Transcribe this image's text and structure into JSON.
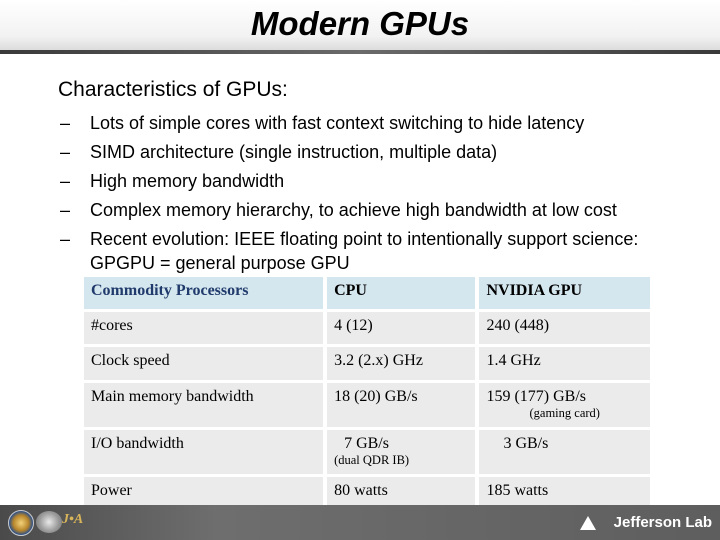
{
  "slide": {
    "title": "Modern GPUs",
    "heading": "Characteristics of GPUs:",
    "bullets": [
      "Lots of simple cores with fast context switching to hide latency",
      "SIMD architecture (single instruction, multiple data)",
      "High memory bandwidth",
      "Complex memory hierarchy, to achieve high bandwidth at low cost",
      "Recent evolution: IEEE floating point to intentionally support science: GPGPU = general purpose GPU"
    ],
    "bullet_marker": "–"
  },
  "table": {
    "header": [
      "Commodity Processors",
      "CPU",
      "NVIDIA GPU"
    ],
    "rows": [
      {
        "label": "#cores",
        "cpu": "4 (12)",
        "gpu": "240 (448)",
        "cpu_note": "",
        "gpu_note": ""
      },
      {
        "label": "Clock speed",
        "cpu": "3.2 (2.x) GHz",
        "gpu": "1.4 GHz",
        "cpu_note": "",
        "gpu_note": ""
      },
      {
        "label": "Main memory bandwidth",
        "cpu": "18 (20) GB/s",
        "gpu": "159 (177) GB/s",
        "cpu_note": "",
        "gpu_note": "(gaming card)"
      },
      {
        "label": "I/O bandwidth",
        "cpu": "7 GB/s",
        "gpu": "3 GB/s",
        "cpu_note": "(dual QDR IB)",
        "gpu_note": ""
      },
      {
        "label": "Power",
        "cpu": "80 watts",
        "gpu": "185 watts",
        "cpu_note": "",
        "gpu_note": ""
      }
    ]
  },
  "footer": {
    "lab_name": "Jefferson Lab",
    "jsa_text": "J•A",
    "colors": {
      "bar": "#5e5e5e",
      "header_row": "#d4e6ee",
      "body_row": "#ebebeb"
    }
  }
}
